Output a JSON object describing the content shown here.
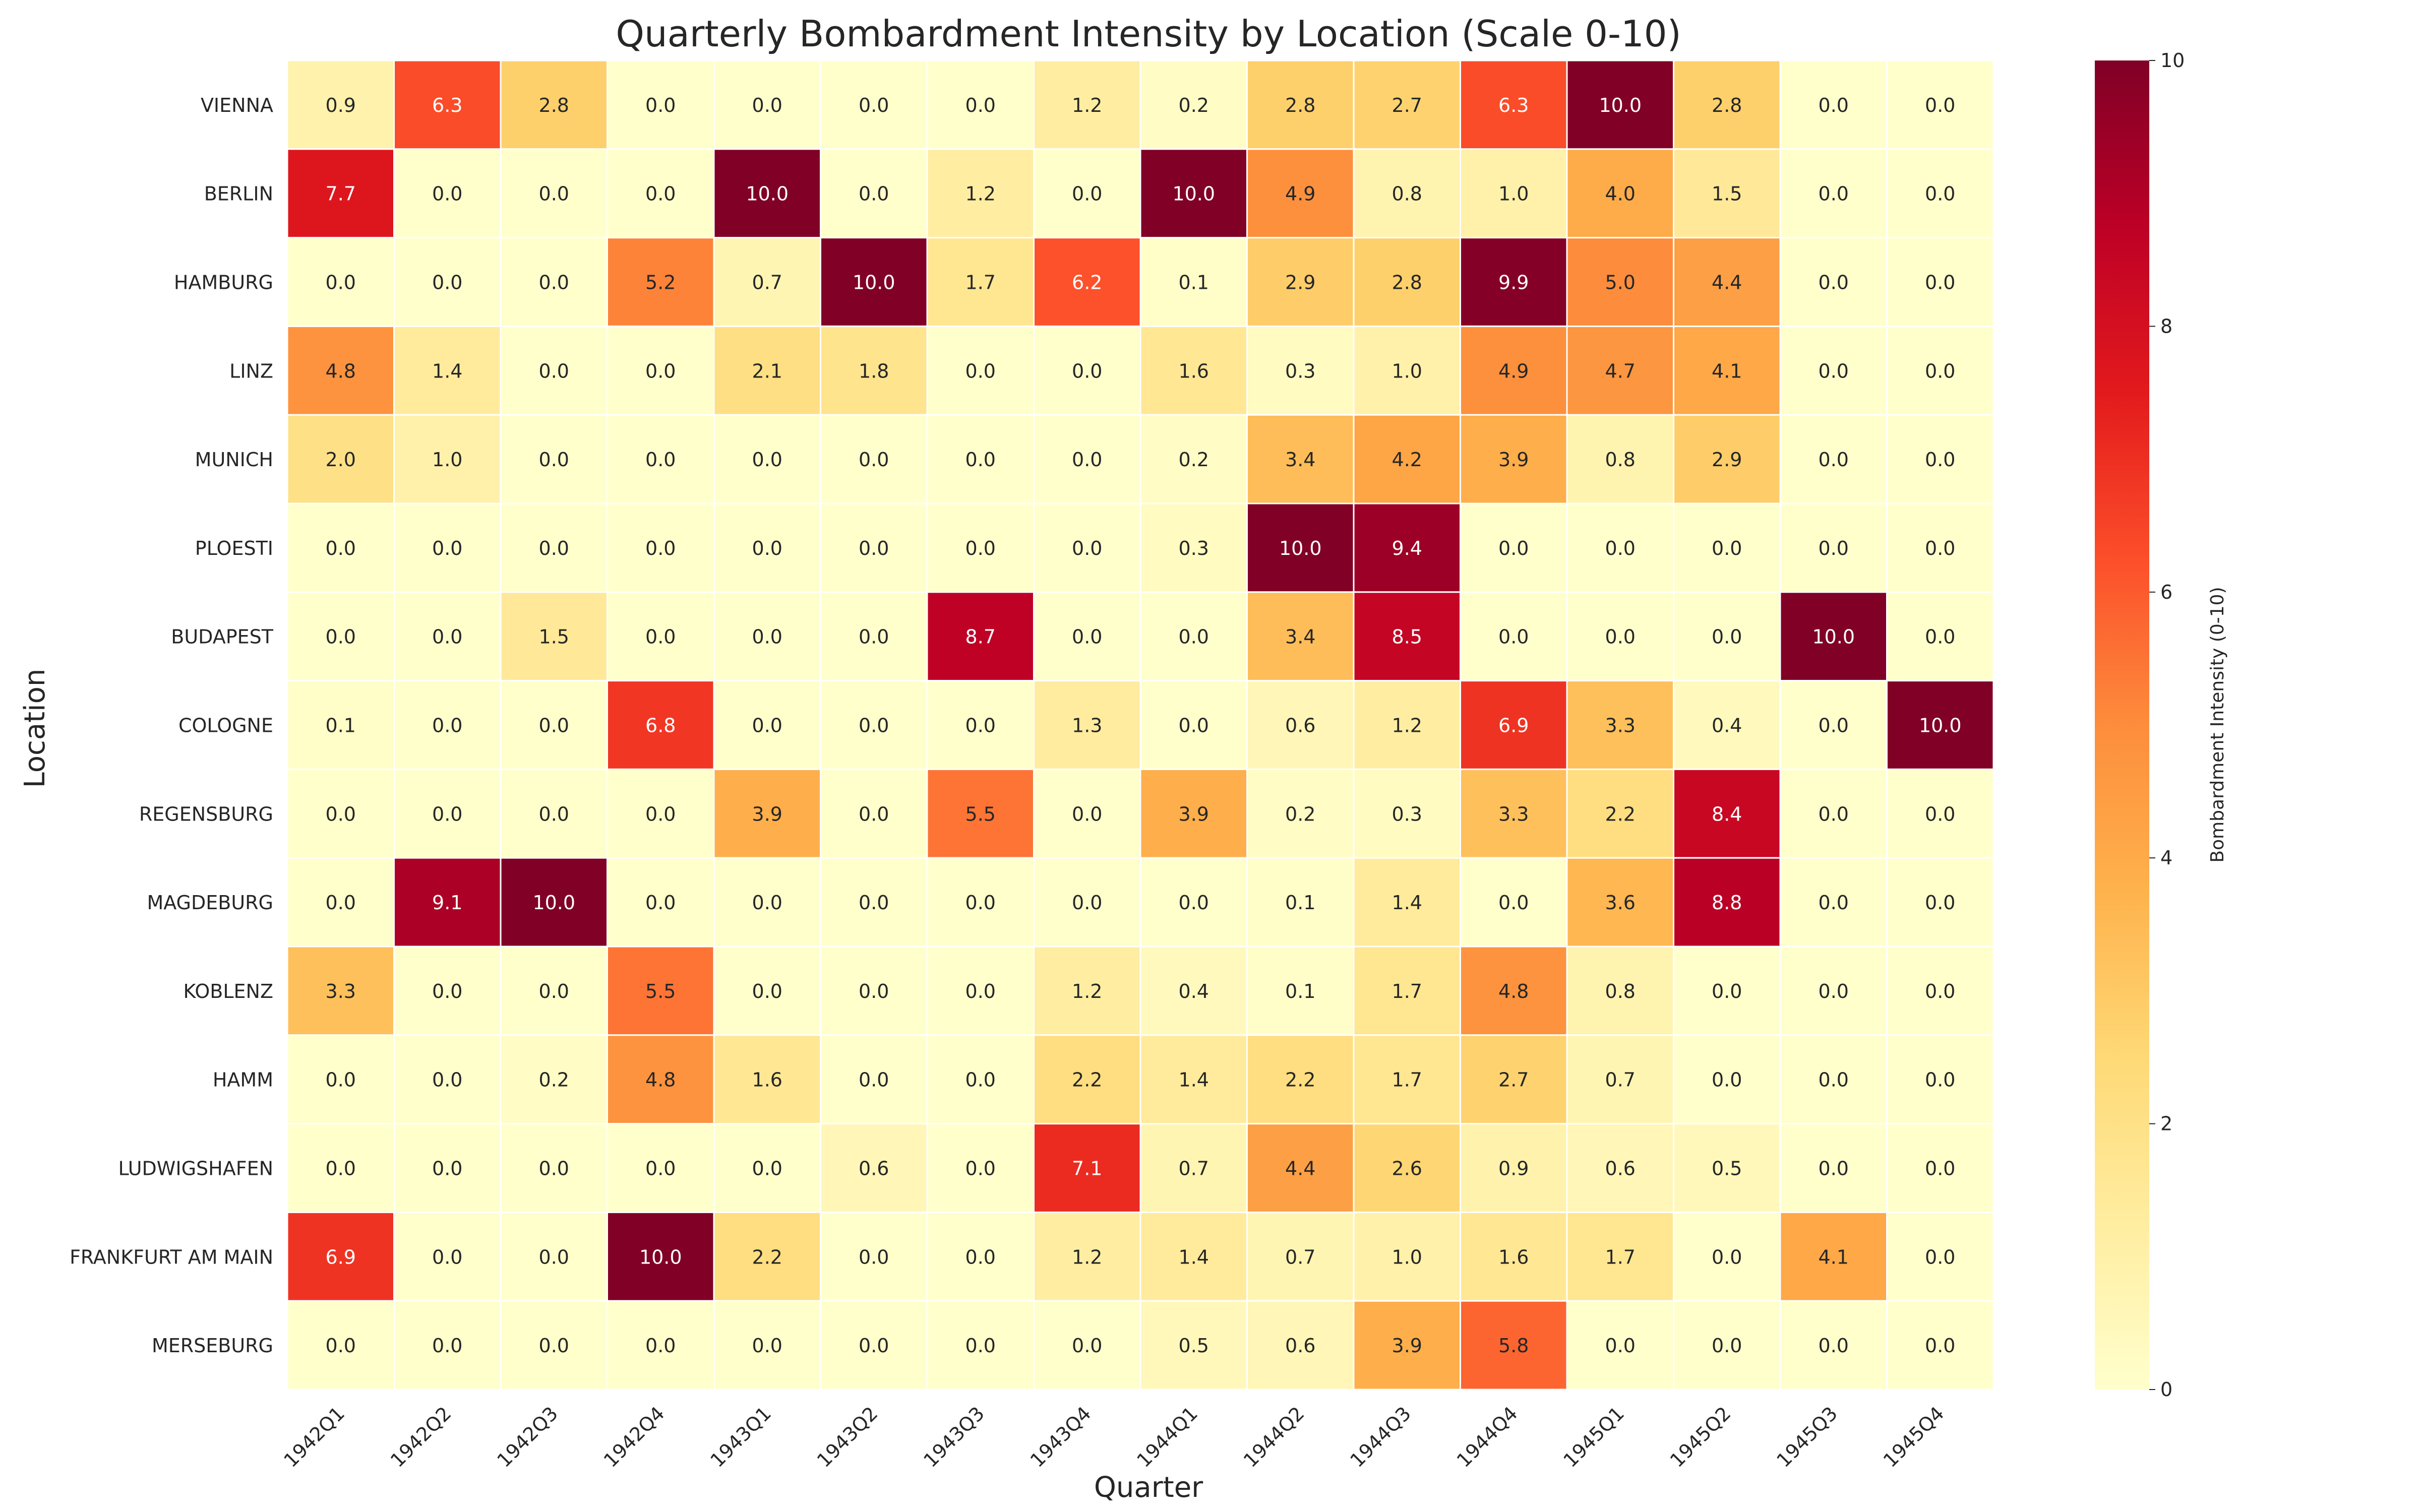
{
  "chart_data": {
    "type": "heatmap",
    "title": "Quarterly Bombardment Intensity by Location (Scale 0-10)",
    "xlabel": "Quarter",
    "ylabel": "Location",
    "colorbar_label": "Bombardment Intensity (0-10)",
    "colorbar_range": [
      0,
      10
    ],
    "colorbar_ticks": [
      0,
      2,
      4,
      6,
      8,
      10
    ],
    "colormap": "YlOrRd",
    "colormap_stops": [
      "#ffffcc",
      "#ffeda0",
      "#fed976",
      "#feb24c",
      "#fd8d3c",
      "#fc4e2a",
      "#e31a1c",
      "#bd0026",
      "#800026"
    ],
    "grid_line_color": "#ffffff",
    "x": [
      "1942Q1",
      "1942Q2",
      "1942Q3",
      "1942Q4",
      "1943Q1",
      "1943Q2",
      "1943Q3",
      "1943Q4",
      "1944Q1",
      "1944Q2",
      "1944Q3",
      "1944Q4",
      "1945Q1",
      "1945Q2",
      "1945Q3",
      "1945Q4"
    ],
    "y": [
      "VIENNA",
      "BERLIN",
      "HAMBURG",
      "LINZ",
      "MUNICH",
      "PLOESTI",
      "BUDAPEST",
      "COLOGNE",
      "REGENSBURG",
      "MAGDEBURG",
      "KOBLENZ",
      "HAMM",
      "LUDWIGSHAFEN",
      "FRANKFURT AM MAIN",
      "MERSEBURG"
    ],
    "values": [
      [
        0.9,
        6.3,
        2.8,
        0.0,
        0.0,
        0.0,
        0.0,
        1.2,
        0.2,
        2.8,
        2.7,
        6.3,
        10.0,
        2.8,
        0.0,
        0.0
      ],
      [
        7.7,
        0.0,
        0.0,
        0.0,
        10.0,
        0.0,
        1.2,
        0.0,
        10.0,
        4.9,
        0.8,
        1.0,
        4.0,
        1.5,
        0.0,
        0.0
      ],
      [
        0.0,
        0.0,
        0.0,
        5.2,
        0.7,
        10.0,
        1.7,
        6.2,
        0.1,
        2.9,
        2.8,
        9.9,
        5.0,
        4.4,
        0.0,
        0.0
      ],
      [
        4.8,
        1.4,
        0.0,
        0.0,
        2.1,
        1.8,
        0.0,
        0.0,
        1.6,
        0.3,
        1.0,
        4.9,
        4.7,
        4.1,
        0.0,
        0.0
      ],
      [
        2.0,
        1.0,
        0.0,
        0.0,
        0.0,
        0.0,
        0.0,
        0.0,
        0.2,
        3.4,
        4.2,
        3.9,
        0.8,
        2.9,
        0.0,
        0.0
      ],
      [
        0.0,
        0.0,
        0.0,
        0.0,
        0.0,
        0.0,
        0.0,
        0.0,
        0.3,
        10.0,
        9.4,
        0.0,
        0.0,
        0.0,
        0.0,
        0.0
      ],
      [
        0.0,
        0.0,
        1.5,
        0.0,
        0.0,
        0.0,
        8.7,
        0.0,
        0.0,
        3.4,
        8.5,
        0.0,
        0.0,
        0.0,
        10.0,
        0.0
      ],
      [
        0.1,
        0.0,
        0.0,
        6.8,
        0.0,
        0.0,
        0.0,
        1.3,
        0.0,
        0.6,
        1.2,
        6.9,
        3.3,
        0.4,
        0.0,
        10.0
      ],
      [
        0.0,
        0.0,
        0.0,
        0.0,
        3.9,
        0.0,
        5.5,
        0.0,
        3.9,
        0.2,
        0.3,
        3.3,
        2.2,
        8.4,
        0.0,
        0.0
      ],
      [
        0.0,
        9.1,
        10.0,
        0.0,
        0.0,
        0.0,
        0.0,
        0.0,
        0.0,
        0.1,
        1.4,
        0.0,
        3.6,
        8.8,
        0.0,
        0.0
      ],
      [
        3.3,
        0.0,
        0.0,
        5.5,
        0.0,
        0.0,
        0.0,
        1.2,
        0.4,
        0.1,
        1.7,
        4.8,
        0.8,
        0.0,
        0.0,
        0.0
      ],
      [
        0.0,
        0.0,
        0.2,
        4.8,
        1.6,
        0.0,
        0.0,
        2.2,
        1.4,
        2.2,
        1.7,
        2.7,
        0.7,
        0.0,
        0.0,
        0.0
      ],
      [
        0.0,
        0.0,
        0.0,
        0.0,
        0.0,
        0.6,
        0.0,
        7.1,
        0.7,
        4.4,
        2.6,
        0.9,
        0.6,
        0.5,
        0.0,
        0.0
      ],
      [
        6.9,
        0.0,
        0.0,
        10.0,
        2.2,
        0.0,
        0.0,
        1.2,
        1.4,
        0.7,
        1.0,
        1.6,
        1.7,
        0.0,
        4.1,
        0.0
      ],
      [
        0.0,
        0.0,
        0.0,
        0.0,
        0.0,
        0.0,
        0.0,
        0.0,
        0.5,
        0.6,
        3.9,
        5.8,
        0.0,
        0.0,
        0.0,
        0.0
      ]
    ]
  }
}
